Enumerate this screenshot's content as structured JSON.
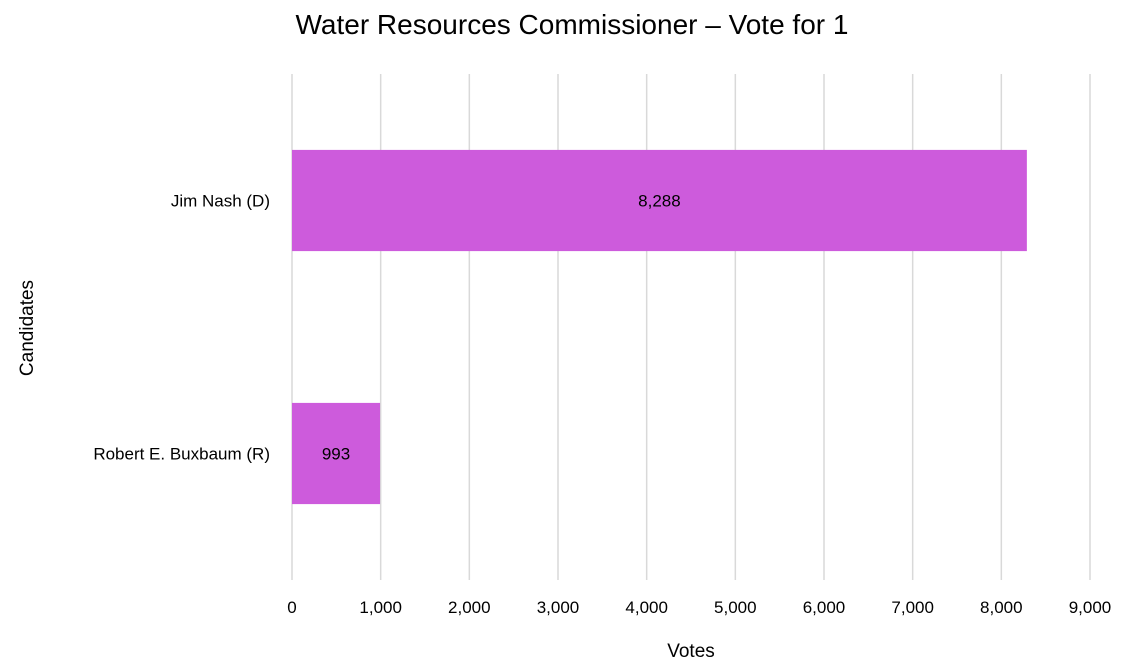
{
  "chart_data": {
    "type": "bar",
    "orientation": "horizontal",
    "title": "Water Resources Commissioner – Vote for 1",
    "xlabel": "Votes",
    "ylabel": "Candidates",
    "categories": [
      "Jim Nash (D)",
      "Robert E. Buxbaum (R)"
    ],
    "values": [
      8288,
      993
    ],
    "value_labels": [
      "8,288",
      "993"
    ],
    "xlim": [
      0,
      9000
    ],
    "x_ticks": [
      0,
      1000,
      2000,
      3000,
      4000,
      5000,
      6000,
      7000,
      8000,
      9000
    ],
    "x_tick_labels": [
      "0",
      "1,000",
      "2,000",
      "3,000",
      "4,000",
      "5,000",
      "6,000",
      "7,000",
      "8,000",
      "9,000"
    ],
    "grid": "vertical",
    "legend": "none",
    "bar_color": "#cd5bdc",
    "gridline_color": "#d9d9d9"
  }
}
